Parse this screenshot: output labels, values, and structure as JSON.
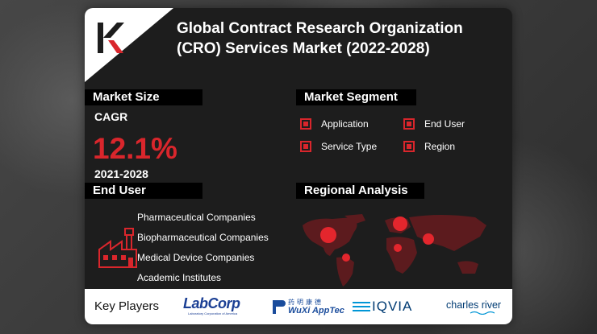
{
  "title": "Global Contract Research Organization (CRO) Services Market (2022-2028)",
  "brand_mark": "K",
  "market_size": {
    "heading": "Market Size",
    "cagr_label": "CAGR",
    "cagr_value": "12.1%",
    "period": "2021-2028"
  },
  "market_segment": {
    "heading": "Market Segment",
    "items": [
      "Application",
      "End User",
      "Service Type",
      "Region"
    ]
  },
  "end_user": {
    "heading": "End User",
    "items": [
      "Pharmaceutical Companies",
      "Biopharmaceutical Companies",
      "Medical Device Companies",
      "Academic Institutes"
    ],
    "icon": "factory-icon"
  },
  "regional_analysis": {
    "heading": "Regional Analysis",
    "icon": "world-map"
  },
  "key_players": {
    "label": "Key Players",
    "companies": [
      {
        "name": "LabCorp",
        "tagline": "Laboratory Corporation of America"
      },
      {
        "name": "WuXi AppTec",
        "cn": "药明康德"
      },
      {
        "name": "IQVIA"
      },
      {
        "name": "charles river"
      }
    ]
  },
  "colors": {
    "accent": "#d9262c",
    "card": "#1d1d1d",
    "labcorp_blue": "#1b3f94",
    "wuxi_blue": "#1a4c9c",
    "iqvia_blue": "#003b73"
  }
}
